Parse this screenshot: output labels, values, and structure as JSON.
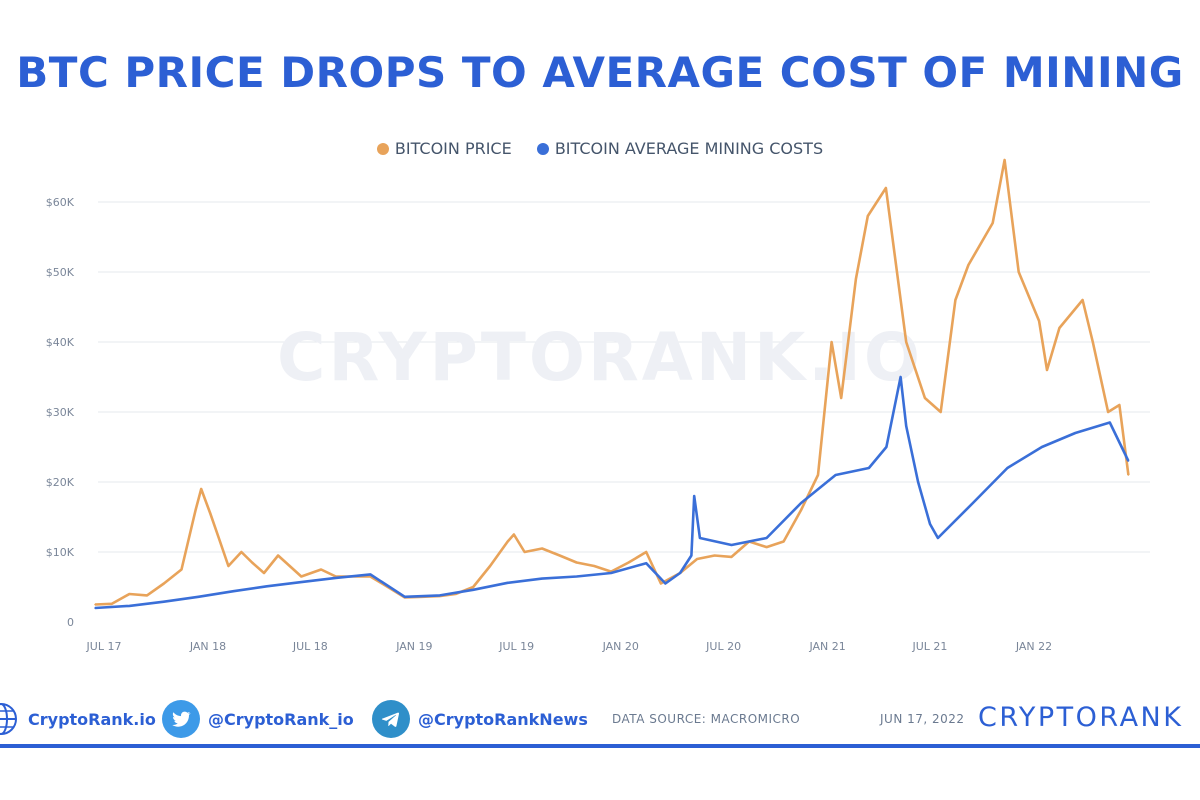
{
  "title": "BTC PRICE DROPS TO AVERAGE COST OF MINING",
  "watermark": "CRYPTORANK.IO",
  "colors": {
    "price": "#e8a35a",
    "cost": "#3a6fd8",
    "title": "#2c5fd4",
    "grid": "#e6e9ee",
    "axis_text": "#7a8699"
  },
  "chart_data": {
    "type": "line",
    "x_ticks": [
      "JUL 17",
      "JAN 18",
      "JUL 18",
      "JAN 19",
      "JUL 19",
      "JAN 20",
      "JUL 20",
      "JAN 21",
      "JUL 21",
      "JAN 22"
    ],
    "y_ticks": [
      "0",
      "$10K",
      "$20K",
      "$30K",
      "$40K",
      "$50K",
      "$60K"
    ],
    "ylim": [
      0,
      60000
    ],
    "x_range": [
      "2017-06",
      "2022-06"
    ],
    "grid": true,
    "legend_position": "top-center",
    "series": [
      {
        "name": "BITCOIN PRICE",
        "color": "#e8a35a",
        "x": [
          "2017-06-15",
          "2017-07-15",
          "2017-08-15",
          "2017-09-15",
          "2017-10-15",
          "2017-11-15",
          "2017-12-10",
          "2017-12-20",
          "2018-01-05",
          "2018-01-20",
          "2018-02-06",
          "2018-03-01",
          "2018-03-20",
          "2018-04-10",
          "2018-05-05",
          "2018-06-15",
          "2018-07-20",
          "2018-08-15",
          "2018-09-15",
          "2018-10-15",
          "2018-11-15",
          "2018-12-15",
          "2019-01-15",
          "2019-02-15",
          "2019-03-15",
          "2019-04-15",
          "2019-05-15",
          "2019-06-15",
          "2019-06-26",
          "2019-07-15",
          "2019-08-15",
          "2019-09-15",
          "2019-10-15",
          "2019-11-15",
          "2019-12-15",
          "2020-01-15",
          "2020-02-15",
          "2020-03-12",
          "2020-04-15",
          "2020-05-15",
          "2020-06-15",
          "2020-07-15",
          "2020-08-15",
          "2020-09-15",
          "2020-10-15",
          "2020-11-15",
          "2020-12-15",
          "2021-01-08",
          "2021-01-25",
          "2021-02-20",
          "2021-03-13",
          "2021-04-14",
          "2021-05-20",
          "2021-06-22",
          "2021-07-20",
          "2021-08-15",
          "2021-09-07",
          "2021-10-20",
          "2021-11-10",
          "2021-12-05",
          "2022-01-10",
          "2022-01-24",
          "2022-02-15",
          "2022-03-28",
          "2022-04-15",
          "2022-05-12",
          "2022-06-01",
          "2022-06-17"
        ],
        "values": [
          2500,
          2600,
          4000,
          3800,
          5500,
          7500,
          16000,
          19000,
          15500,
          12000,
          8000,
          10000,
          8500,
          7000,
          9500,
          6500,
          7500,
          6500,
          6500,
          6500,
          5000,
          3500,
          3600,
          3700,
          4000,
          5000,
          8000,
          11500,
          12500,
          10000,
          10500,
          9500,
          8500,
          8000,
          7200,
          8500,
          10000,
          5500,
          7000,
          9000,
          9500,
          9300,
          11500,
          10700,
          11500,
          16000,
          21000,
          40000,
          32000,
          49000,
          58000,
          62000,
          40000,
          32000,
          30000,
          46000,
          51000,
          57000,
          66000,
          50000,
          43000,
          36000,
          42000,
          46000,
          40000,
          30000,
          31000,
          21000
        ]
      },
      {
        "name": "BITCOIN AVERAGE MINING COSTS",
        "color": "#3a6fd8",
        "x": [
          "2017-06-15",
          "2017-08-15",
          "2017-10-15",
          "2017-12-15",
          "2018-02-15",
          "2018-04-15",
          "2018-06-15",
          "2018-08-15",
          "2018-10-15",
          "2018-12-15",
          "2019-02-15",
          "2019-04-15",
          "2019-06-15",
          "2019-08-15",
          "2019-10-15",
          "2019-12-15",
          "2020-02-15",
          "2020-03-20",
          "2020-04-15",
          "2020-05-05",
          "2020-05-10",
          "2020-05-20",
          "2020-07-15",
          "2020-09-15",
          "2020-11-15",
          "2021-01-15",
          "2021-03-15",
          "2021-04-15",
          "2021-05-10",
          "2021-05-20",
          "2021-06-10",
          "2021-07-01",
          "2021-07-15",
          "2021-09-15",
          "2021-11-15",
          "2022-01-15",
          "2022-03-15",
          "2022-05-15",
          "2022-06-17"
        ],
        "values": [
          2000,
          2300,
          2900,
          3600,
          4400,
          5100,
          5700,
          6300,
          6800,
          3600,
          3800,
          4600,
          5600,
          6200,
          6500,
          7000,
          8400,
          5500,
          7000,
          9500,
          18000,
          12000,
          11000,
          12000,
          17000,
          21000,
          22000,
          25000,
          35000,
          28000,
          20000,
          14000,
          12000,
          17000,
          22000,
          25000,
          27000,
          28500,
          23000
        ]
      }
    ]
  },
  "footer": {
    "website": "CryptoRank.io",
    "twitter": "@CryptoRank_io",
    "telegram": "@CryptoRankNews",
    "source": "DATA SOURCE: MACROMICRO",
    "date": "JUN 17, 2022",
    "brand": "CRYPTORANK",
    "icons": [
      "globe-icon",
      "twitter-icon",
      "telegram-icon"
    ]
  }
}
